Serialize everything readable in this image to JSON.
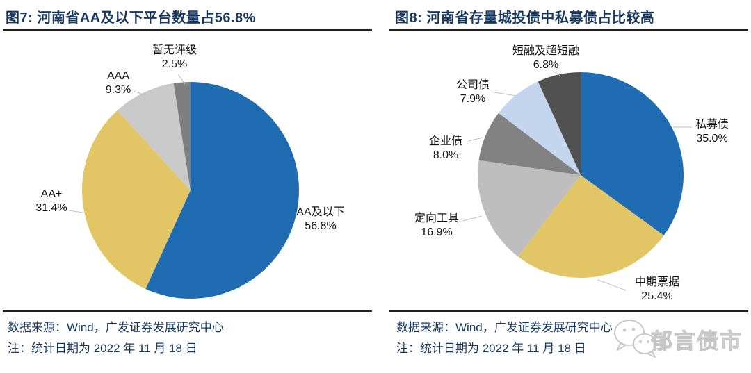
{
  "chart_data": [
    {
      "type": "pie",
      "title": "图7:  河南省AA及以下平台数量占56.8%",
      "direction": "clockwise",
      "start_angle_deg": 0,
      "legend_position": "outside-labels",
      "slices": [
        {
          "label": "AA及以下",
          "value": 56.8,
          "pct_label": "56.8%",
          "color": "#1F6CB3"
        },
        {
          "label": "AA+",
          "value": 31.4,
          "pct_label": "31.4%",
          "color": "#E2C666"
        },
        {
          "label": "AAA",
          "value": 9.3,
          "pct_label": "9.3%",
          "color": "#C9C9C9"
        },
        {
          "label": "暂无评级",
          "value": 2.5,
          "pct_label": "2.5%",
          "color": "#7F7F7F"
        }
      ],
      "source_note": "数据来源：Wind，广发证券发展研究中心",
      "date_note": "注：统计日期为 2022 年 11 月 18 日"
    },
    {
      "type": "pie",
      "title": "图8:  河南省存量城投债中私募债占比较高",
      "direction": "clockwise",
      "start_angle_deg": 0,
      "legend_position": "outside-labels",
      "slices": [
        {
          "label": "私募债",
          "value": 35.0,
          "pct_label": "35.0%",
          "color": "#1F6CB3"
        },
        {
          "label": "中期票据",
          "value": 25.4,
          "pct_label": "25.4%",
          "color": "#E2C666"
        },
        {
          "label": "定向工具",
          "value": 16.9,
          "pct_label": "16.9%",
          "color": "#BEBEBE"
        },
        {
          "label": "企业债",
          "value": 8.0,
          "pct_label": "8.0%",
          "color": "#828282"
        },
        {
          "label": "公司债",
          "value": 7.9,
          "pct_label": "7.9%",
          "color": "#C3D6EE"
        },
        {
          "label": "短融及超短融",
          "value": 6.8,
          "pct_label": "6.8%",
          "color": "#515151"
        }
      ],
      "source_note": "数据来源：Wind，广发证券发展研究中心",
      "date_note": "注：统计日期为 2022 年 11 月 18 日"
    }
  ],
  "watermark": {
    "text": "郁言债市",
    "icon": "wechat-logo"
  },
  "colors": {
    "title_navy": "#17375E",
    "note_navy": "#17375E",
    "rule_dark": "#1F1F1F",
    "label_text": "#111111",
    "leader_gray": "#BFBFBF",
    "watermark_gray": "#C6C6C6"
  }
}
